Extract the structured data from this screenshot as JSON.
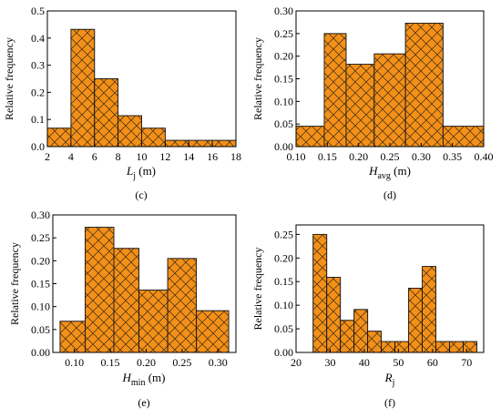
{
  "style": {
    "bar_fill": "#f39019",
    "hatch_color": "#3a2a10",
    "axis_color": "#000000"
  },
  "chart_data": [
    {
      "id": "c",
      "type": "bar",
      "panel_label": "(c)",
      "ylabel": "Relative frequency",
      "xlabel": {
        "main": "L",
        "sub": "j",
        "unit": " (m)"
      },
      "xlim": [
        2,
        18
      ],
      "ylim": [
        0,
        0.5
      ],
      "xticks": [
        2,
        4,
        6,
        8,
        10,
        12,
        14,
        16,
        18
      ],
      "yticks": [
        0.0,
        0.1,
        0.2,
        0.3,
        0.4,
        0.5
      ],
      "ytick_labels": [
        "0.0",
        "0.1",
        "0.2",
        "0.3",
        "0.4",
        "0.5"
      ],
      "bins": [
        [
          2,
          4
        ],
        [
          4,
          6
        ],
        [
          6,
          8
        ],
        [
          8,
          10
        ],
        [
          10,
          12
        ],
        [
          12,
          14
        ],
        [
          14,
          16
        ],
        [
          16,
          18
        ]
      ],
      "values": [
        0.068,
        0.432,
        0.25,
        0.114,
        0.068,
        0.023,
        0.023,
        0.023
      ]
    },
    {
      "id": "d",
      "type": "bar",
      "panel_label": "(d)",
      "ylabel": "Relative frequency",
      "xlabel": {
        "main": "H",
        "sub": "avg",
        "unit": " (m)"
      },
      "xlim": [
        0.1,
        0.4
      ],
      "ylim": [
        0,
        0.3
      ],
      "xticks": [
        0.1,
        0.15,
        0.2,
        0.25,
        0.3,
        0.35,
        0.4
      ],
      "xtick_labels": [
        "0.10",
        "0.15",
        "0.20",
        "0.25",
        "0.30",
        "0.35",
        "0.40"
      ],
      "yticks": [
        0.0,
        0.05,
        0.1,
        0.15,
        0.2,
        0.25,
        0.3
      ],
      "ytick_labels": [
        "0.00",
        "0.05",
        "0.10",
        "0.15",
        "0.20",
        "0.25",
        "0.30"
      ],
      "bins": [
        [
          0.1,
          0.145
        ],
        [
          0.145,
          0.18
        ],
        [
          0.18,
          0.225
        ],
        [
          0.225,
          0.275
        ],
        [
          0.275,
          0.335
        ],
        [
          0.335,
          0.4
        ]
      ],
      "values": [
        0.045,
        0.25,
        0.182,
        0.205,
        0.273,
        0.045
      ]
    },
    {
      "id": "e",
      "type": "bar",
      "panel_label": "(e)",
      "ylabel": "Relative frequency",
      "xlabel": {
        "main": "H",
        "sub": "min",
        "unit": " (m)"
      },
      "xlim": [
        0.07,
        0.325
      ],
      "ylim": [
        0,
        0.3
      ],
      "xticks": [
        0.1,
        0.15,
        0.2,
        0.25,
        0.3
      ],
      "xtick_labels": [
        "0.10",
        "0.15",
        "0.20",
        "0.25",
        "0.30"
      ],
      "yticks": [
        0.0,
        0.05,
        0.1,
        0.15,
        0.2,
        0.25,
        0.3
      ],
      "ytick_labels": [
        "0.00",
        "0.05",
        "0.10",
        "0.15",
        "0.20",
        "0.25",
        "0.30"
      ],
      "bins": [
        [
          0.08,
          0.115
        ],
        [
          0.115,
          0.155
        ],
        [
          0.155,
          0.19
        ],
        [
          0.19,
          0.23
        ],
        [
          0.23,
          0.27
        ],
        [
          0.27,
          0.315
        ]
      ],
      "values": [
        0.068,
        0.273,
        0.227,
        0.136,
        0.205,
        0.091
      ]
    },
    {
      "id": "f",
      "type": "bar",
      "panel_label": "(f)",
      "ylabel": "Relative frequency",
      "xlabel": {
        "main": "R",
        "sub": "j",
        "unit": ""
      },
      "xlim": [
        20,
        75
      ],
      "ylim": [
        0,
        0.27
      ],
      "xticks": [
        20,
        30,
        40,
        50,
        60,
        70
      ],
      "yticks": [
        0.0,
        0.05,
        0.1,
        0.15,
        0.2,
        0.25
      ],
      "ytick_labels": [
        "0.00",
        "0.05",
        "0.10",
        "0.15",
        "0.20",
        "0.25"
      ],
      "bins": [
        [
          25,
          29
        ],
        [
          29,
          33
        ],
        [
          33,
          37
        ],
        [
          37,
          41
        ],
        [
          41,
          45
        ],
        [
          45,
          49
        ],
        [
          49,
          53
        ],
        [
          53,
          57
        ],
        [
          57,
          61
        ],
        [
          61,
          65
        ],
        [
          65,
          69
        ],
        [
          69,
          73
        ]
      ],
      "values": [
        0.25,
        0.159,
        0.068,
        0.091,
        0.045,
        0.023,
        0.023,
        0.136,
        0.182,
        0.023,
        0.023,
        0.023
      ]
    }
  ]
}
